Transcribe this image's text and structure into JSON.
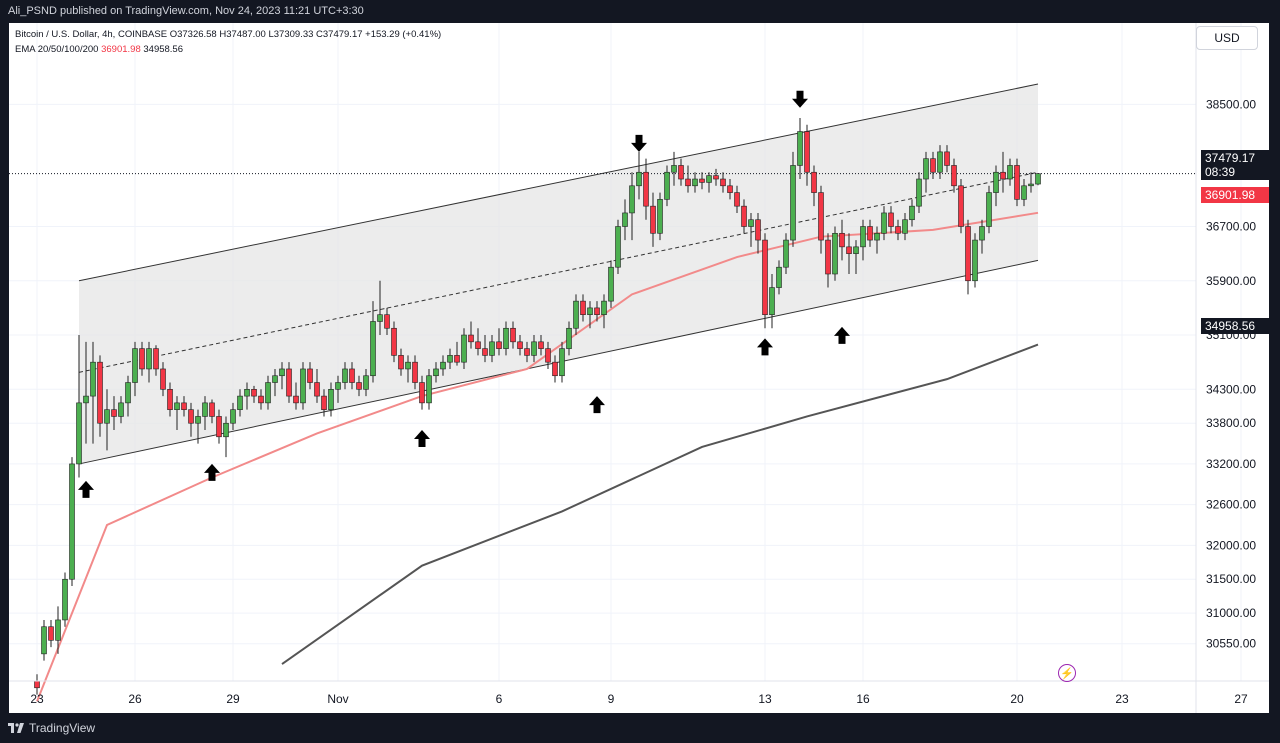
{
  "header": {
    "publish_line": "Ali_PSND published on TradingView.com, Nov 24, 2023 11:21 UTC+3:30"
  },
  "legend": {
    "symbol": "Bitcoin / U.S. Dollar, 4h, COINBASE",
    "ohlc": "O37326.58 H37487.00 L37309.33 C37479.17 +153.29 (+0.41%)",
    "ema_label": "EMA 20/50/100/200",
    "ema_value_1": "36901.98",
    "ema_value_2": "34958.56"
  },
  "currency_button": "USD",
  "footer": {
    "brand": "TradingView"
  },
  "price_tags": {
    "current_price": "37479.17",
    "countdown": "08:39",
    "ema_fast": "36901.98",
    "ema_slow": "34958.56"
  },
  "colors": {
    "up": "#4caf50",
    "down": "#f23645",
    "ema_fast": "#f28a8a",
    "ema_slow": "#555555",
    "channel_fill": "#e6e6e6"
  },
  "chart_data": {
    "type": "candlestick",
    "title": "Bitcoin / U.S. Dollar, 4h, COINBASE",
    "y_axis_ticks": [
      30550,
      31000,
      31500,
      32000,
      32600,
      33200,
      33800,
      34300,
      35100,
      35900,
      36700,
      38500
    ],
    "y_axis_tick_labels": [
      "30550.00",
      "31000.00",
      "31500.00",
      "32000.00",
      "32600.00",
      "33200.00",
      "33800.00",
      "34300.00",
      "35100.00",
      "35900.00",
      "36700.00",
      "38500.00"
    ],
    "x_axis_labels": [
      "23",
      "26",
      "29",
      "Nov",
      "6",
      "9",
      "13",
      "16",
      "20",
      "23",
      "27"
    ],
    "ylim": [
      30000,
      39700
    ],
    "ohlc_series": [
      [
        0,
        30000,
        30100,
        29800,
        29900
      ],
      [
        1,
        30400,
        30900,
        30300,
        30800
      ],
      [
        2,
        30800,
        30900,
        30500,
        30600
      ],
      [
        3,
        30600,
        31100,
        30400,
        30900
      ],
      [
        4,
        30900,
        31600,
        30800,
        31500
      ],
      [
        5,
        31500,
        33300,
        31400,
        33200
      ],
      [
        6,
        33200,
        35100,
        33000,
        34100
      ],
      [
        7,
        34100,
        35000,
        33500,
        34200
      ],
      [
        8,
        34200,
        35000,
        33500,
        34700
      ],
      [
        9,
        34700,
        34800,
        33600,
        33800
      ],
      [
        10,
        33800,
        34300,
        33400,
        34000
      ],
      [
        11,
        34000,
        34200,
        33700,
        33900
      ],
      [
        12,
        33900,
        34200,
        33800,
        34100
      ],
      [
        13,
        34100,
        34500,
        33900,
        34400
      ],
      [
        14,
        34400,
        35000,
        34200,
        34900
      ],
      [
        15,
        34900,
        35000,
        34500,
        34600
      ],
      [
        16,
        34600,
        35000,
        34400,
        34900
      ],
      [
        17,
        34900,
        34950,
        34500,
        34600
      ],
      [
        18,
        34600,
        34700,
        34200,
        34300
      ],
      [
        19,
        34300,
        34400,
        33900,
        34000
      ],
      [
        20,
        34000,
        34200,
        33700,
        34100
      ],
      [
        21,
        34100,
        34200,
        33900,
        34000
      ],
      [
        22,
        34000,
        34100,
        33600,
        33800
      ],
      [
        23,
        33800,
        34000,
        33500,
        33900
      ],
      [
        24,
        33900,
        34200,
        33700,
        34100
      ],
      [
        25,
        34100,
        34150,
        33800,
        33900
      ],
      [
        26,
        33900,
        34000,
        33500,
        33600
      ],
      [
        27,
        33600,
        33900,
        33300,
        33800
      ],
      [
        28,
        33800,
        34100,
        33700,
        34000
      ],
      [
        29,
        34000,
        34300,
        33900,
        34200
      ],
      [
        30,
        34200,
        34400,
        34000,
        34300
      ],
      [
        31,
        34300,
        34350,
        34100,
        34200
      ],
      [
        32,
        34200,
        34300,
        34000,
        34100
      ],
      [
        33,
        34100,
        34500,
        34000,
        34400
      ],
      [
        34,
        34400,
        34600,
        34200,
        34500
      ],
      [
        35,
        34500,
        34700,
        34300,
        34600
      ],
      [
        36,
        34600,
        34700,
        34100,
        34200
      ],
      [
        37,
        34200,
        34400,
        34000,
        34100
      ],
      [
        38,
        34100,
        34700,
        34000,
        34600
      ],
      [
        39,
        34600,
        34700,
        34300,
        34400
      ],
      [
        40,
        34400,
        34600,
        34100,
        34200
      ],
      [
        41,
        34200,
        34300,
        33900,
        34000
      ],
      [
        42,
        34000,
        34400,
        33900,
        34300
      ],
      [
        43,
        34300,
        34500,
        34100,
        34400
      ],
      [
        44,
        34400,
        34700,
        34300,
        34600
      ],
      [
        45,
        34600,
        34700,
        34300,
        34400
      ],
      [
        46,
        34400,
        34500,
        34200,
        34300
      ],
      [
        47,
        34300,
        34600,
        34200,
        34500
      ],
      [
        48,
        34500,
        35600,
        34400,
        35300
      ],
      [
        49,
        35300,
        35900,
        35100,
        35400
      ],
      [
        50,
        35400,
        35500,
        35100,
        35200
      ],
      [
        51,
        35200,
        35300,
        34700,
        34800
      ],
      [
        52,
        34800,
        34900,
        34500,
        34600
      ],
      [
        53,
        34600,
        34800,
        34400,
        34700
      ],
      [
        54,
        34700,
        34800,
        34300,
        34400
      ],
      [
        55,
        34400,
        34500,
        34000,
        34100
      ],
      [
        56,
        34100,
        34600,
        34000,
        34500
      ],
      [
        57,
        34500,
        34700,
        34400,
        34600
      ],
      [
        58,
        34600,
        34800,
        34500,
        34700
      ],
      [
        59,
        34700,
        34900,
        34600,
        34800
      ],
      [
        60,
        34800,
        35000,
        34650,
        34700
      ],
      [
        61,
        34700,
        35200,
        34600,
        35100
      ],
      [
        62,
        35100,
        35300,
        34900,
        35000
      ],
      [
        63,
        35000,
        35200,
        34800,
        34900
      ],
      [
        64,
        34900,
        35100,
        34700,
        34800
      ],
      [
        65,
        34800,
        35100,
        34700,
        35000
      ],
      [
        66,
        35000,
        35200,
        34800,
        34900
      ],
      [
        67,
        34900,
        35300,
        34800,
        35200
      ],
      [
        68,
        35200,
        35300,
        34900,
        35000
      ],
      [
        69,
        35000,
        35100,
        34800,
        34900
      ],
      [
        70,
        34900,
        35000,
        34700,
        34800
      ],
      [
        71,
        34800,
        35100,
        34700,
        35000
      ],
      [
        72,
        35000,
        35100,
        34800,
        34900
      ],
      [
        73,
        34900,
        35000,
        34600,
        34700
      ],
      [
        74,
        34700,
        34800,
        34400,
        34500
      ],
      [
        75,
        34500,
        35000,
        34400,
        34900
      ],
      [
        76,
        34900,
        35300,
        34800,
        35200
      ],
      [
        77,
        35200,
        35700,
        35100,
        35600
      ],
      [
        78,
        35600,
        35700,
        35300,
        35400
      ],
      [
        79,
        35400,
        35600,
        35200,
        35500
      ],
      [
        80,
        35500,
        35600,
        35300,
        35400
      ],
      [
        81,
        35400,
        35700,
        35200,
        35600
      ],
      [
        82,
        35600,
        36200,
        35500,
        36100
      ],
      [
        83,
        36100,
        36800,
        36000,
        36700
      ],
      [
        84,
        36700,
        37100,
        36500,
        36900
      ],
      [
        85,
        36900,
        37500,
        36500,
        37300
      ],
      [
        86,
        37300,
        37800,
        37100,
        37500
      ],
      [
        87,
        37500,
        37700,
        36800,
        37000
      ],
      [
        88,
        37000,
        37200,
        36400,
        36600
      ],
      [
        89,
        36600,
        37200,
        36500,
        37100
      ],
      [
        90,
        37100,
        37600,
        37000,
        37500
      ],
      [
        91,
        37500,
        37800,
        37300,
        37600
      ],
      [
        92,
        37600,
        37700,
        37300,
        37400
      ],
      [
        93,
        37400,
        37600,
        37200,
        37300
      ],
      [
        94,
        37300,
        37500,
        37200,
        37400
      ],
      [
        95,
        37400,
        37500,
        37250,
        37350
      ],
      [
        96,
        37350,
        37500,
        37200,
        37450
      ],
      [
        97,
        37450,
        37550,
        37300,
        37400
      ],
      [
        98,
        37400,
        37500,
        37200,
        37300
      ],
      [
        99,
        37300,
        37400,
        37100,
        37200
      ],
      [
        100,
        37200,
        37300,
        36900,
        37000
      ],
      [
        101,
        37000,
        37100,
        36600,
        36700
      ],
      [
        102,
        36700,
        36900,
        36400,
        36800
      ],
      [
        103,
        36800,
        36900,
        36300,
        36500
      ],
      [
        104,
        36500,
        36600,
        35200,
        35400
      ],
      [
        105,
        35400,
        36000,
        35200,
        35800
      ],
      [
        106,
        35800,
        36200,
        35700,
        36100
      ],
      [
        107,
        36100,
        36600,
        36000,
        36500
      ],
      [
        108,
        36500,
        37800,
        36400,
        37600
      ],
      [
        109,
        37600,
        38300,
        37400,
        38100
      ],
      [
        110,
        38100,
        38200,
        37300,
        37500
      ],
      [
        111,
        37500,
        37600,
        37000,
        37200
      ],
      [
        112,
        37200,
        37300,
        36300,
        36500
      ],
      [
        113,
        36500,
        36600,
        35800,
        36000
      ],
      [
        114,
        36000,
        36700,
        35900,
        36600
      ],
      [
        115,
        36600,
        36800,
        36200,
        36400
      ],
      [
        116,
        36400,
        36600,
        36000,
        36300
      ],
      [
        117,
        36300,
        36500,
        36000,
        36400
      ],
      [
        118,
        36400,
        36800,
        36200,
        36700
      ],
      [
        119,
        36700,
        36800,
        36400,
        36500
      ],
      [
        120,
        36500,
        36700,
        36300,
        36600
      ],
      [
        121,
        36600,
        37000,
        36500,
        36900
      ],
      [
        122,
        36900,
        37000,
        36600,
        36700
      ],
      [
        123,
        36700,
        36800,
        36500,
        36600
      ],
      [
        124,
        36600,
        36900,
        36500,
        36800
      ],
      [
        125,
        36800,
        37100,
        36700,
        37000
      ],
      [
        126,
        37000,
        37500,
        36900,
        37400
      ],
      [
        127,
        37400,
        37800,
        37200,
        37700
      ],
      [
        128,
        37700,
        37800,
        37400,
        37500
      ],
      [
        129,
        37500,
        37900,
        37400,
        37800
      ],
      [
        130,
        37800,
        37900,
        37500,
        37600
      ],
      [
        131,
        37600,
        37700,
        37200,
        37300
      ],
      [
        132,
        37300,
        37400,
        36600,
        36700
      ],
      [
        133,
        36700,
        36800,
        35700,
        35900
      ],
      [
        134,
        35900,
        36600,
        35800,
        36500
      ],
      [
        135,
        36500,
        36800,
        36300,
        36700
      ],
      [
        136,
        36700,
        37300,
        36600,
        37200
      ],
      [
        137,
        37200,
        37600,
        37000,
        37500
      ],
      [
        138,
        37500,
        37800,
        37200,
        37400
      ],
      [
        139,
        37400,
        37700,
        37300,
        37600
      ],
      [
        140,
        37600,
        37700,
        37000,
        37100
      ],
      [
        141,
        37100,
        37400,
        37000,
        37300
      ],
      [
        142,
        37300,
        37500,
        37200,
        37326
      ],
      [
        143,
        37326,
        37487,
        37309,
        37479
      ]
    ],
    "ema_fast": [
      [
        0,
        29700
      ],
      [
        10,
        32300
      ],
      [
        25,
        33000
      ],
      [
        40,
        33650
      ],
      [
        55,
        34200
      ],
      [
        70,
        34600
      ],
      [
        85,
        35700
      ],
      [
        100,
        36250
      ],
      [
        112,
        36550
      ],
      [
        128,
        36650
      ],
      [
        143,
        36902
      ]
    ],
    "ema_slow": [
      [
        35,
        30250
      ],
      [
        55,
        31700
      ],
      [
        75,
        32500
      ],
      [
        95,
        33450
      ],
      [
        110,
        33900
      ],
      [
        130,
        34450
      ],
      [
        143,
        34960
      ]
    ],
    "channel_upper": [
      [
        6,
        35900
      ],
      [
        143,
        38800
      ]
    ],
    "channel_lower": [
      [
        6,
        33200
      ],
      [
        143,
        36200
      ]
    ],
    "channel_mid": [
      [
        6,
        34550
      ],
      [
        143,
        37500
      ]
    ],
    "current_price": 37479.17,
    "arrows": [
      {
        "dir": "up",
        "x": 7,
        "y": 32950
      },
      {
        "dir": "up",
        "x": 25,
        "y": 33200
      },
      {
        "dir": "up",
        "x": 55,
        "y": 33700
      },
      {
        "dir": "up",
        "x": 80,
        "y": 34200
      },
      {
        "dir": "up",
        "x": 104,
        "y": 35050
      },
      {
        "dir": "up",
        "x": 115,
        "y": 35220
      },
      {
        "dir": "down",
        "x": 86,
        "y": 37800
      },
      {
        "dir": "down",
        "x": 109,
        "y": 38450
      }
    ]
  }
}
